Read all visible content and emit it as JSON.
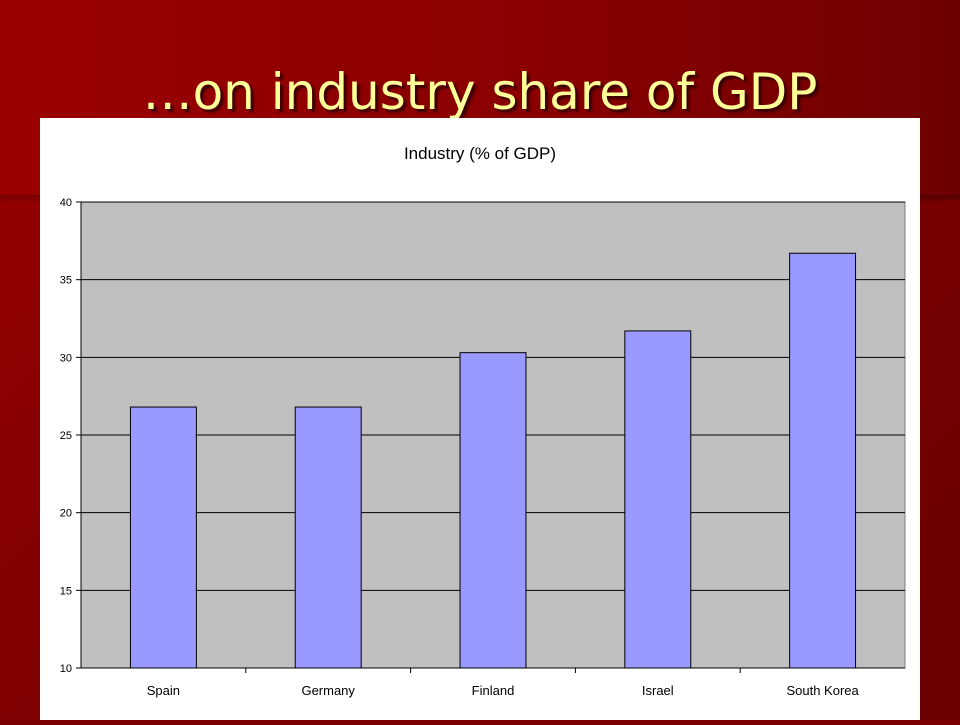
{
  "slide": {
    "title": "…on industry share of GDP"
  },
  "chart_data": {
    "type": "bar",
    "title": "Industry (% of GDP)",
    "xlabel": "",
    "ylabel": "",
    "categories": [
      "Spain",
      "Germany",
      "Finland",
      "Israel",
      "South Korea"
    ],
    "values": [
      26.8,
      26.8,
      30.3,
      31.7,
      36.7
    ],
    "ylim": [
      10,
      40
    ],
    "yticks": [
      10,
      15,
      20,
      25,
      30,
      35,
      40
    ],
    "grid": true,
    "legend": "none",
    "colors": {
      "bar": "#9999ff",
      "plot_background": "#c0c0c0",
      "gridline": "#000000"
    }
  }
}
